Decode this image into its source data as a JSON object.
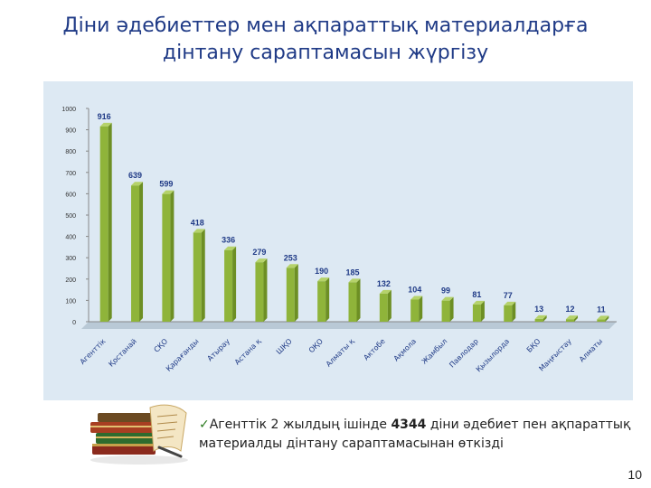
{
  "slide": {
    "title_line1": "Діни әдебиеттер мен ақпараттық материалдарға",
    "title_line2": "дінтану сараптамасын жүргізу",
    "note_prefix": "Агенттік 2 жылдың ішінде ",
    "note_bold": "4344",
    "note_suffix": " діни әдебиет пен ақпараттық материалды дінтану сараптамасынан өткізді",
    "page_number": "10"
  },
  "colors": {
    "title": "#1f3a86",
    "bar": "#8fb43a",
    "bar_dark": "#6d8f24",
    "plot_bg": "#dde9f3",
    "value_label": "#1f3a86"
  },
  "chart_data": {
    "type": "bar",
    "title": "",
    "xlabel": "",
    "ylabel": "",
    "ylim": [
      0,
      1000
    ],
    "yticks": [
      "0",
      "100",
      "200",
      "300",
      "400",
      "500",
      "600",
      "700",
      "800",
      "900",
      "1000"
    ],
    "grid": false,
    "legend": "none",
    "categories": [
      "Агенттік",
      "Қостанай",
      "СҚО",
      "Қарағанды",
      "Атырау",
      "Астана қ",
      "ШҚО",
      "ОҚО",
      "Алматы қ",
      "Актобе",
      "Ақмола",
      "Жамбыл",
      "Павлодар",
      "Қызылорда",
      "БҚО",
      "Маңғыстау",
      "Алматы"
    ],
    "values": [
      916,
      639,
      599,
      418,
      336,
      279,
      253,
      190,
      185,
      132,
      104,
      99,
      81,
      77,
      13,
      12,
      11
    ]
  }
}
